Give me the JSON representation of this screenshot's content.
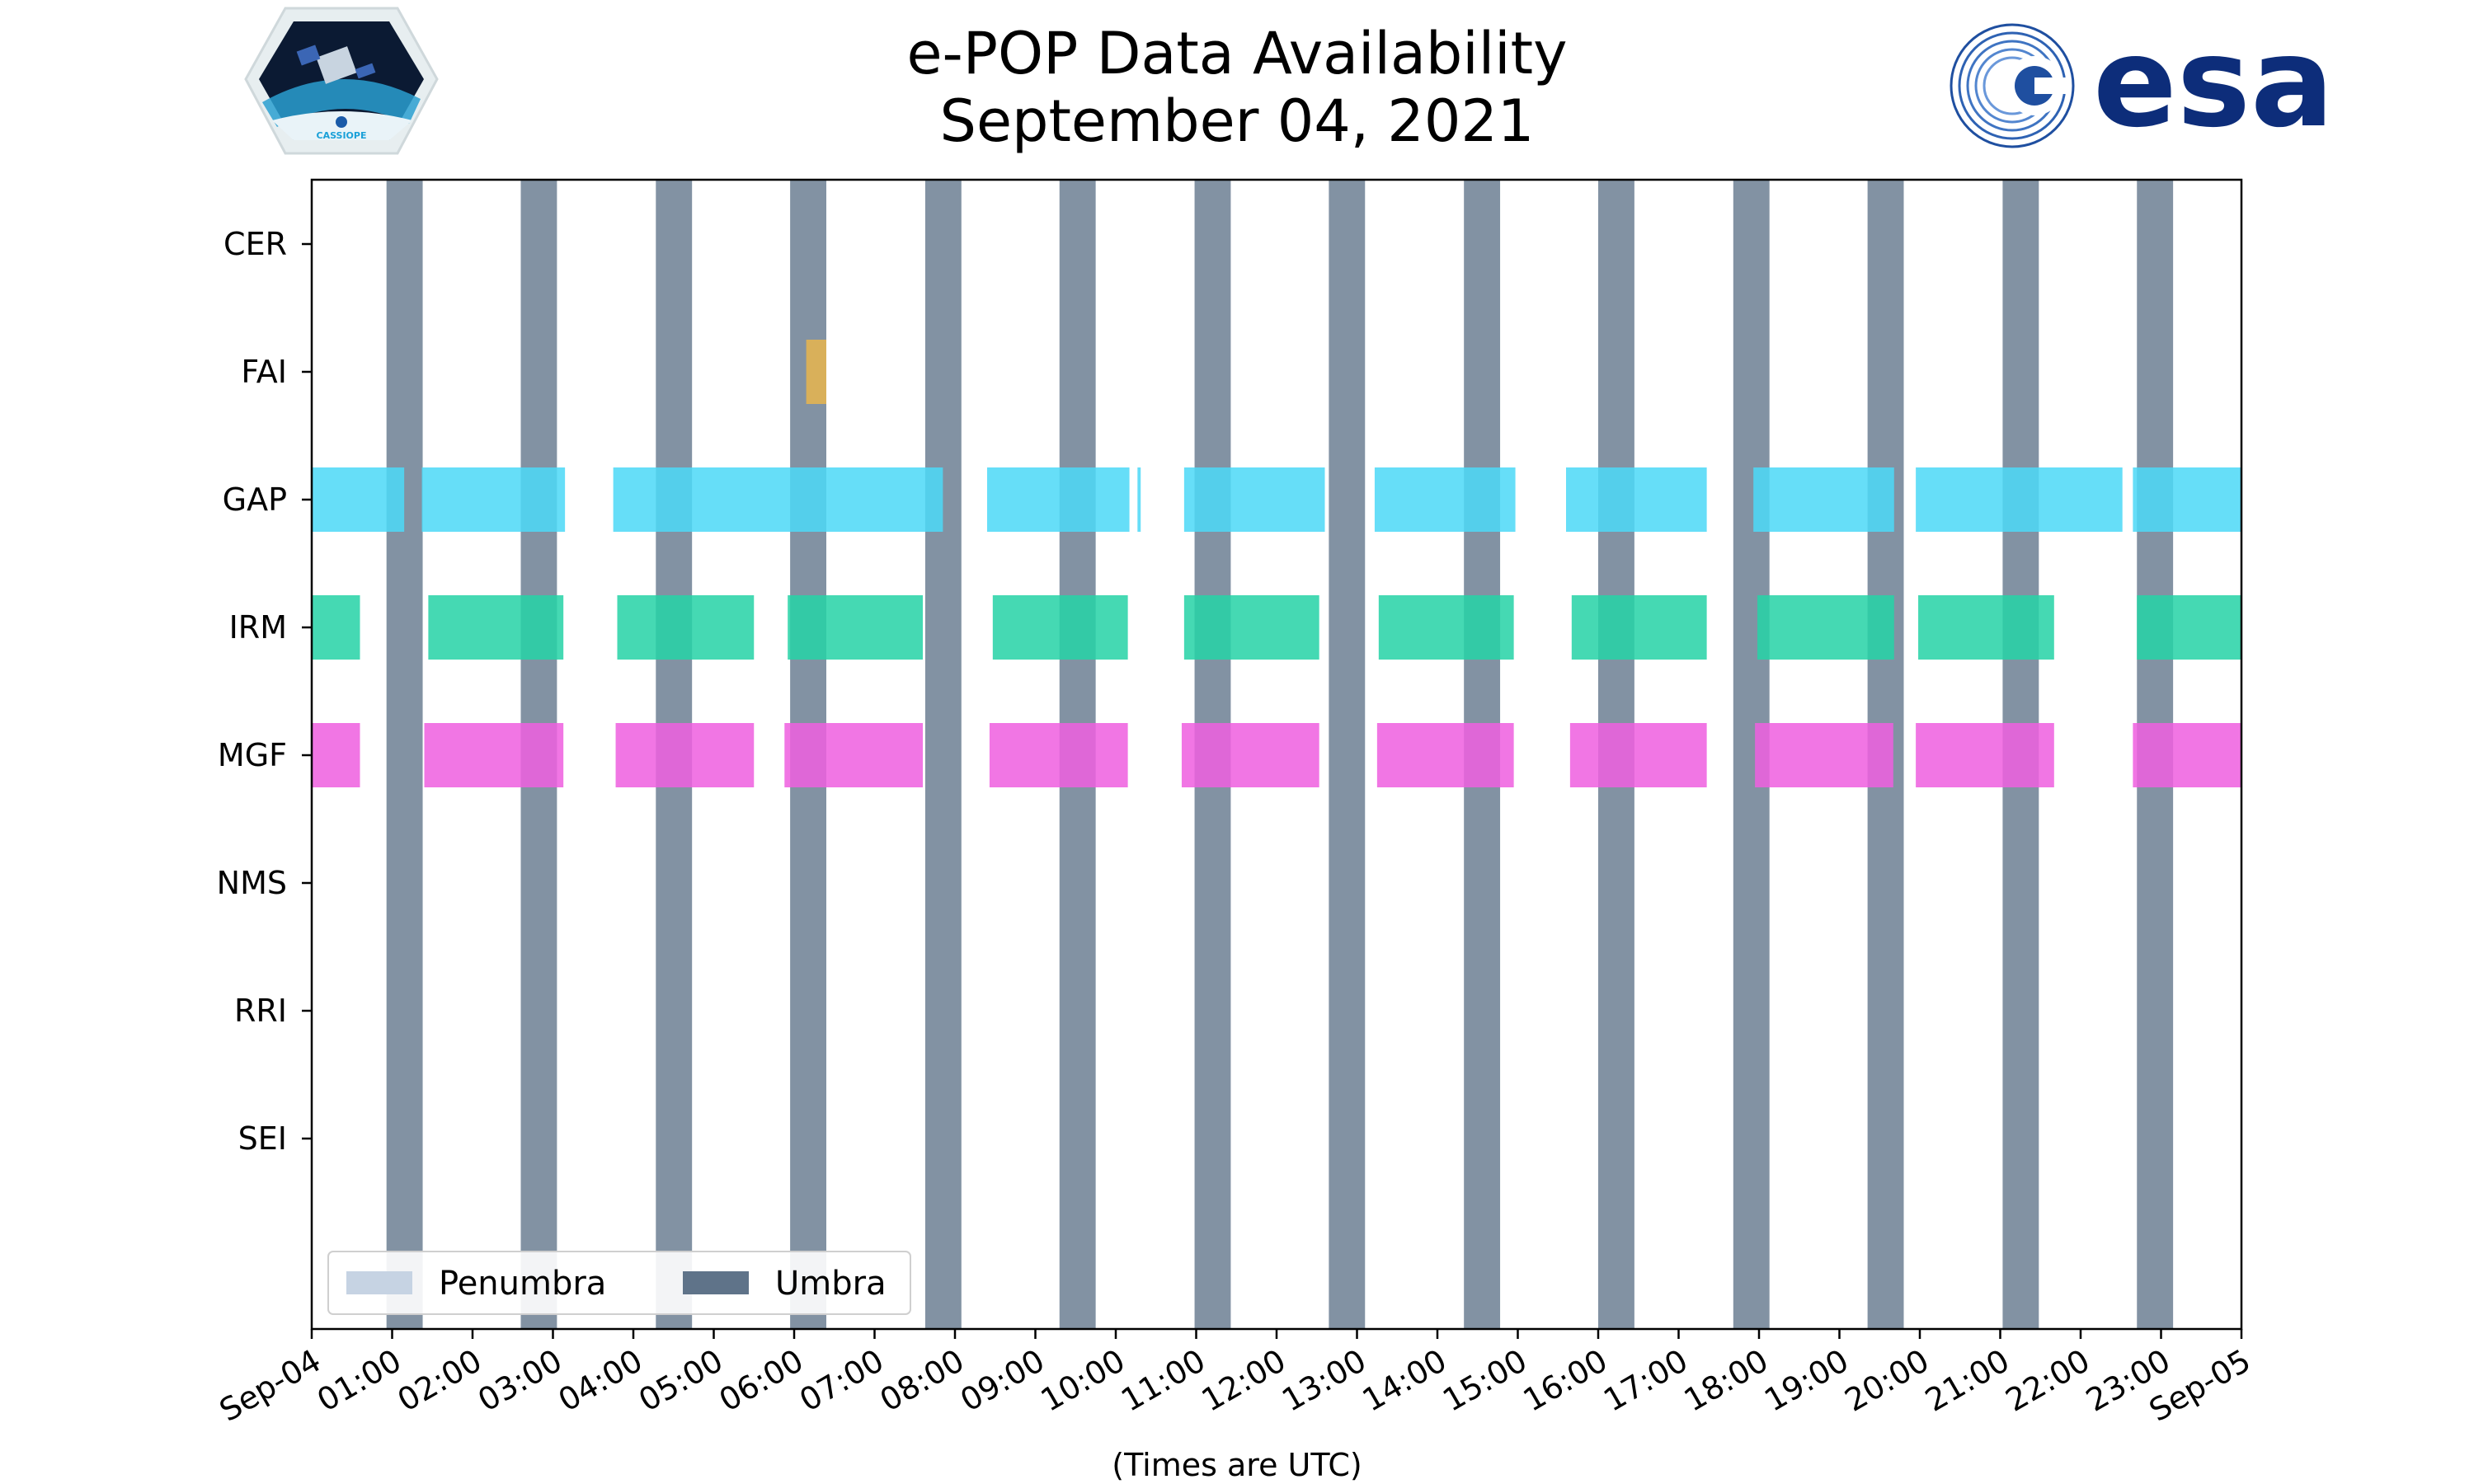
{
  "title_line1": "e-POP Data Availability",
  "title_line2": "September 04, 2021",
  "logos": {
    "left": {
      "name": "CASSIOPE mission logo",
      "text": "CASSIOPE"
    },
    "right": {
      "name": "ESA logo",
      "text": "esa",
      "color": "#0d2d7a"
    }
  },
  "colors": {
    "umbra": "#5f7389",
    "penumbra": "#c6d3e3",
    "FAI": "#e8b54e",
    "GAP": "#4dd9f7",
    "GAP_dark": "#33d0f7",
    "IRM": "#27d3a6",
    "MGF": "#ef5fe0",
    "MGF_dark": "#ee4be0"
  },
  "chart_data": {
    "type": "timeline",
    "title": "e-POP Data Availability September 04, 2021",
    "xlabel": "(Times are UTC)",
    "ylabel": "",
    "xlim": [
      0,
      24
    ],
    "x_units": "hours UTC from 2021-09-04 00:00",
    "x_ticks": [
      {
        "value": 0,
        "label": "Sep-04"
      },
      {
        "value": 1,
        "label": "01:00"
      },
      {
        "value": 2,
        "label": "02:00"
      },
      {
        "value": 3,
        "label": "03:00"
      },
      {
        "value": 4,
        "label": "04:00"
      },
      {
        "value": 5,
        "label": "05:00"
      },
      {
        "value": 6,
        "label": "06:00"
      },
      {
        "value": 7,
        "label": "07:00"
      },
      {
        "value": 8,
        "label": "08:00"
      },
      {
        "value": 9,
        "label": "09:00"
      },
      {
        "value": 10,
        "label": "10:00"
      },
      {
        "value": 11,
        "label": "11:00"
      },
      {
        "value": 12,
        "label": "12:00"
      },
      {
        "value": 13,
        "label": "13:00"
      },
      {
        "value": 14,
        "label": "14:00"
      },
      {
        "value": 15,
        "label": "15:00"
      },
      {
        "value": 16,
        "label": "16:00"
      },
      {
        "value": 17,
        "label": "17:00"
      },
      {
        "value": 18,
        "label": "18:00"
      },
      {
        "value": 19,
        "label": "19:00"
      },
      {
        "value": 20,
        "label": "20:00"
      },
      {
        "value": 21,
        "label": "21:00"
      },
      {
        "value": 22,
        "label": "22:00"
      },
      {
        "value": 23,
        "label": "23:00"
      },
      {
        "value": 24,
        "label": "Sep-05"
      }
    ],
    "instruments": [
      "CER",
      "FAI",
      "GAP",
      "IRM",
      "MGF",
      "NMS",
      "RRI",
      "SEI"
    ],
    "umbra": [
      [
        0.93,
        1.38
      ],
      [
        2.6,
        3.05
      ],
      [
        4.28,
        4.73
      ],
      [
        5.95,
        6.4
      ],
      [
        7.63,
        8.08
      ],
      [
        9.3,
        9.75
      ],
      [
        10.98,
        11.43
      ],
      [
        12.65,
        13.1
      ],
      [
        14.33,
        14.78
      ],
      [
        16.0,
        16.45
      ],
      [
        17.68,
        18.13
      ],
      [
        19.35,
        19.8
      ],
      [
        21.03,
        21.48
      ],
      [
        22.7,
        23.15
      ]
    ],
    "penumbra": [],
    "series": [
      {
        "name": "CER",
        "intervals": []
      },
      {
        "name": "FAI",
        "intervals": [
          [
            6.15,
            6.4
          ]
        ]
      },
      {
        "name": "GAP",
        "intervals": [
          [
            0.0,
            1.15
          ],
          [
            1.37,
            3.15
          ],
          [
            3.75,
            7.85
          ],
          [
            8.4,
            10.17
          ],
          [
            10.27,
            10.31
          ],
          [
            10.85,
            12.6
          ],
          [
            13.22,
            14.97
          ],
          [
            15.6,
            17.35
          ],
          [
            17.93,
            19.68
          ],
          [
            19.95,
            22.52
          ],
          [
            22.65,
            24.0
          ]
        ]
      },
      {
        "name": "IRM",
        "intervals": [
          [
            0.0,
            0.6
          ],
          [
            1.45,
            3.13
          ],
          [
            3.8,
            5.5
          ],
          [
            5.92,
            7.6
          ],
          [
            8.47,
            10.15
          ],
          [
            10.85,
            12.53
          ],
          [
            13.27,
            14.95
          ],
          [
            15.67,
            17.35
          ],
          [
            17.98,
            19.68
          ],
          [
            19.98,
            21.67
          ],
          [
            22.7,
            24.0
          ]
        ]
      },
      {
        "name": "MGF",
        "intervals": [
          [
            0.0,
            0.6
          ],
          [
            1.4,
            3.13
          ],
          [
            3.78,
            5.5
          ],
          [
            5.88,
            7.6
          ],
          [
            8.43,
            10.15
          ],
          [
            10.82,
            12.53
          ],
          [
            13.25,
            14.95
          ],
          [
            15.65,
            17.35
          ],
          [
            17.95,
            19.67
          ],
          [
            19.95,
            21.67
          ],
          [
            22.65,
            24.0
          ]
        ]
      },
      {
        "name": "NMS",
        "intervals": []
      },
      {
        "name": "RRI",
        "intervals": []
      },
      {
        "name": "SEI",
        "intervals": []
      }
    ],
    "legend": {
      "position": "lower-left",
      "entries": [
        {
          "label": "Penumbra",
          "color": "#c6d3e3"
        },
        {
          "label": "Umbra",
          "color": "#5f7389"
        }
      ]
    }
  }
}
